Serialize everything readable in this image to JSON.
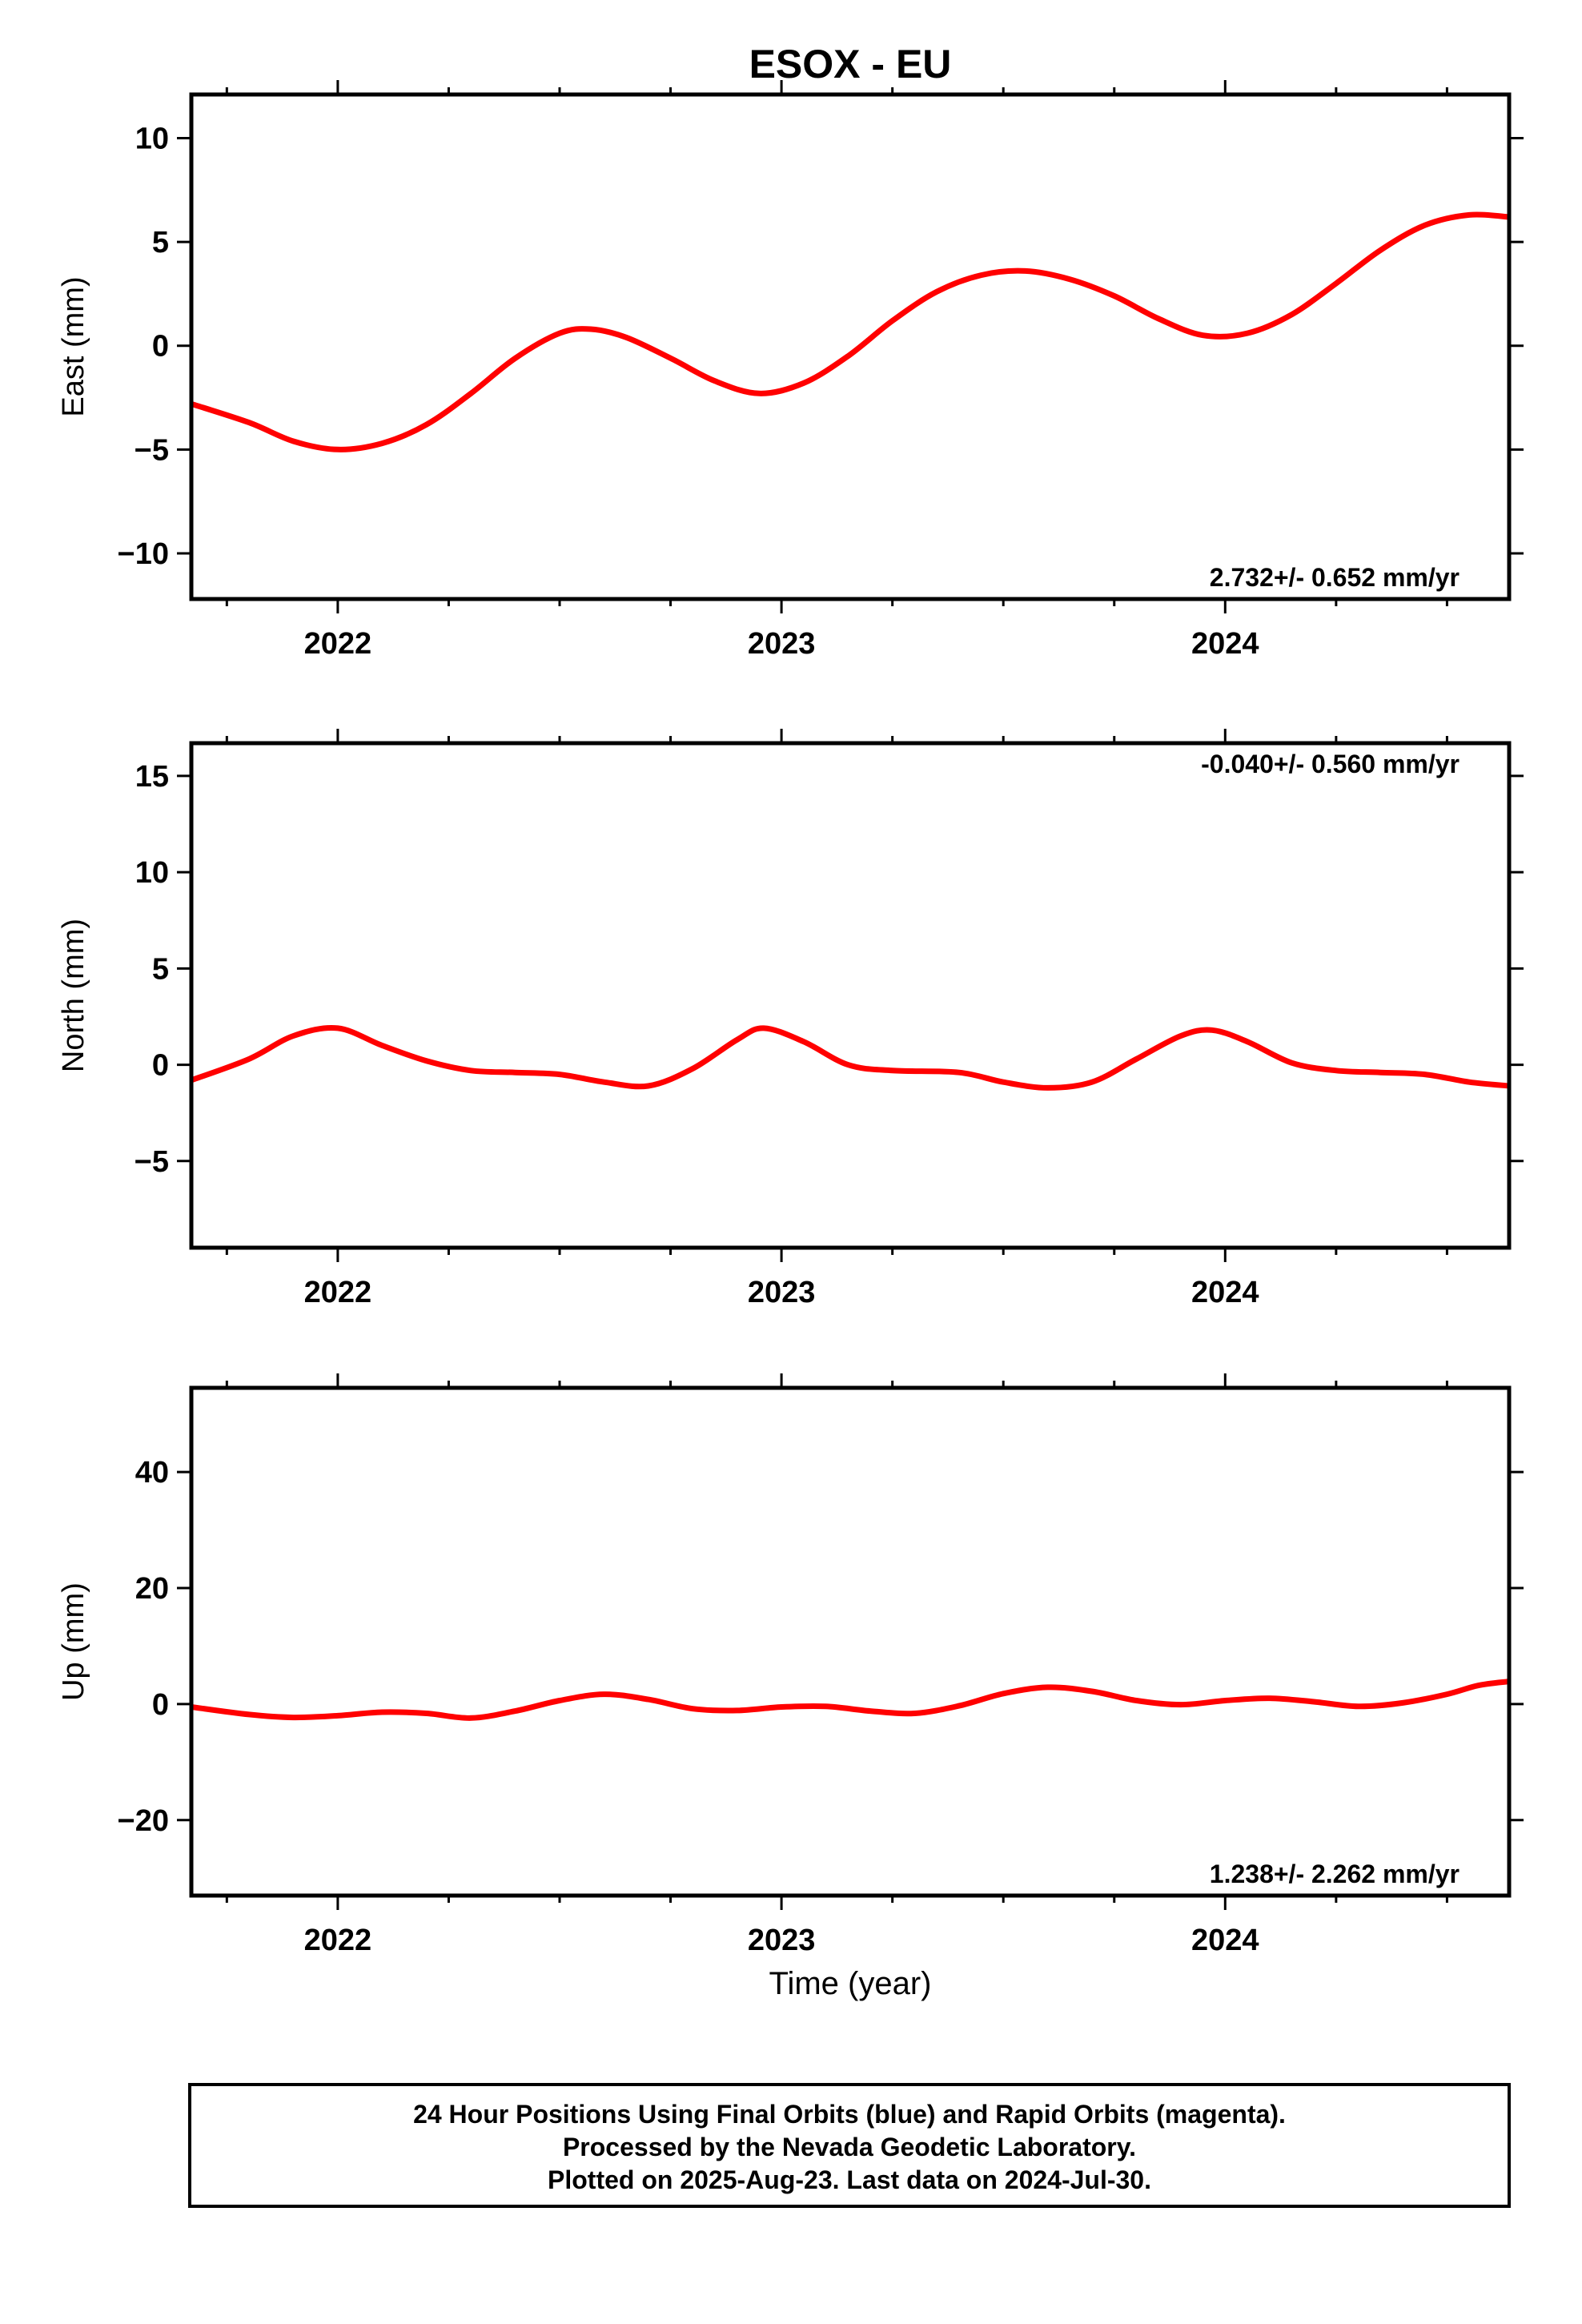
{
  "title": "ESOX - EU",
  "x_label": "Time (year)",
  "footer": {
    "line1": "24 Hour Positions Using Final Orbits (blue) and Rapid Orbits (magenta).",
    "line2": "Processed by the Nevada Geodetic Laboratory.",
    "line3": "Plotted on 2025-Aug-23. Last data on 2024-Jul-30."
  },
  "colors": {
    "points": "#0000ff",
    "model": "#ff0000",
    "frame": "#000000"
  },
  "chart_data": [
    {
      "type": "scatter",
      "ylabel": "East (mm)",
      "xlim": [
        2021.67,
        2024.64
      ],
      "ylim": [
        -12.2,
        12.1
      ],
      "x_ticks": [
        2022,
        2023,
        2024
      ],
      "y_ticks": [
        -10,
        -5,
        0,
        5,
        10
      ],
      "y_tick_labels": [
        "−10",
        "−5",
        "0",
        "5",
        "10"
      ],
      "rate_text": "2.732+/- 0.652 mm/yr",
      "rate_position": "bottom-right",
      "series": [
        {
          "values": []
        },
        {
          "values": [
            [
              2021.67,
              -2.8
            ],
            [
              2021.8,
              -3.7
            ],
            [
              2021.9,
              -4.6
            ],
            [
              2022.0,
              -5.0
            ],
            [
              2022.1,
              -4.7
            ],
            [
              2022.2,
              -3.8
            ],
            [
              2022.3,
              -2.3
            ],
            [
              2022.4,
              -0.6
            ],
            [
              2022.5,
              0.6
            ],
            [
              2022.57,
              0.8
            ],
            [
              2022.65,
              0.4
            ],
            [
              2022.75,
              -0.6
            ],
            [
              2022.85,
              -1.7
            ],
            [
              2022.95,
              -2.3
            ],
            [
              2023.05,
              -1.8
            ],
            [
              2023.15,
              -0.5
            ],
            [
              2023.25,
              1.2
            ],
            [
              2023.35,
              2.6
            ],
            [
              2023.45,
              3.4
            ],
            [
              2023.55,
              3.6
            ],
            [
              2023.65,
              3.2
            ],
            [
              2023.75,
              2.4
            ],
            [
              2023.85,
              1.3
            ],
            [
              2023.95,
              0.5
            ],
            [
              2024.05,
              0.6
            ],
            [
              2024.15,
              1.5
            ],
            [
              2024.25,
              3.0
            ],
            [
              2024.35,
              4.6
            ],
            [
              2024.45,
              5.8
            ],
            [
              2024.55,
              6.3
            ],
            [
              2024.64,
              6.2
            ]
          ]
        }
      ]
    },
    {
      "type": "scatter",
      "ylabel": "North (mm)",
      "xlim": [
        2021.67,
        2024.64
      ],
      "ylim": [
        -9.5,
        16.7
      ],
      "x_ticks": [
        2022,
        2023,
        2024
      ],
      "y_ticks": [
        -5,
        0,
        5,
        10,
        15
      ],
      "y_tick_labels": [
        "−5",
        "0",
        "5",
        "10",
        "15"
      ],
      "rate_text": "-0.040+/- 0.560 mm/yr",
      "rate_position": "top-right",
      "series": [
        {
          "values": []
        },
        {
          "values": [
            [
              2021.67,
              -0.8
            ],
            [
              2021.8,
              0.3
            ],
            [
              2021.9,
              1.5
            ],
            [
              2022.0,
              1.9
            ],
            [
              2022.1,
              1.0
            ],
            [
              2022.2,
              0.2
            ],
            [
              2022.3,
              -0.3
            ],
            [
              2022.4,
              -0.4
            ],
            [
              2022.5,
              -0.5
            ],
            [
              2022.6,
              -0.9
            ],
            [
              2022.7,
              -1.1
            ],
            [
              2022.8,
              -0.2
            ],
            [
              2022.9,
              1.3
            ],
            [
              2022.96,
              1.9
            ],
            [
              2023.05,
              1.2
            ],
            [
              2023.15,
              0.0
            ],
            [
              2023.25,
              -0.3
            ],
            [
              2023.4,
              -0.4
            ],
            [
              2023.5,
              -0.9
            ],
            [
              2023.6,
              -1.2
            ],
            [
              2023.7,
              -0.9
            ],
            [
              2023.8,
              0.3
            ],
            [
              2023.9,
              1.5
            ],
            [
              2023.97,
              1.8
            ],
            [
              2024.05,
              1.2
            ],
            [
              2024.15,
              0.1
            ],
            [
              2024.25,
              -0.3
            ],
            [
              2024.35,
              -0.4
            ],
            [
              2024.45,
              -0.5
            ],
            [
              2024.55,
              -0.9
            ],
            [
              2024.64,
              -1.1
            ]
          ]
        }
      ]
    },
    {
      "type": "scatter",
      "ylabel": "Up (mm)",
      "xlim": [
        2021.67,
        2024.64
      ],
      "ylim": [
        -33.0,
        54.5
      ],
      "x_ticks": [
        2022,
        2023,
        2024
      ],
      "y_ticks": [
        -20,
        0,
        20,
        40
      ],
      "y_tick_labels": [
        "−20",
        "0",
        "20",
        "40"
      ],
      "rate_text": "1.238+/- 2.262 mm/yr",
      "rate_position": "bottom-right",
      "series": [
        {
          "values": []
        },
        {
          "values": [
            [
              2021.67,
              -0.5
            ],
            [
              2021.8,
              -1.8
            ],
            [
              2021.9,
              -2.3
            ],
            [
              2022.0,
              -2.0
            ],
            [
              2022.1,
              -1.4
            ],
            [
              2022.2,
              -1.6
            ],
            [
              2022.3,
              -2.4
            ],
            [
              2022.4,
              -1.2
            ],
            [
              2022.5,
              0.6
            ],
            [
              2022.6,
              1.7
            ],
            [
              2022.7,
              0.8
            ],
            [
              2022.8,
              -0.8
            ],
            [
              2022.9,
              -1.1
            ],
            [
              2023.0,
              -0.5
            ],
            [
              2023.1,
              -0.4
            ],
            [
              2023.2,
              -1.2
            ],
            [
              2023.3,
              -1.6
            ],
            [
              2023.4,
              -0.3
            ],
            [
              2023.5,
              1.8
            ],
            [
              2023.6,
              2.9
            ],
            [
              2023.7,
              2.2
            ],
            [
              2023.8,
              0.6
            ],
            [
              2023.9,
              -0.1
            ],
            [
              2024.0,
              0.6
            ],
            [
              2024.1,
              1.0
            ],
            [
              2024.2,
              0.4
            ],
            [
              2024.3,
              -0.4
            ],
            [
              2024.4,
              0.2
            ],
            [
              2024.5,
              1.7
            ],
            [
              2024.57,
              3.2
            ],
            [
              2024.64,
              3.9
            ]
          ]
        }
      ]
    }
  ]
}
